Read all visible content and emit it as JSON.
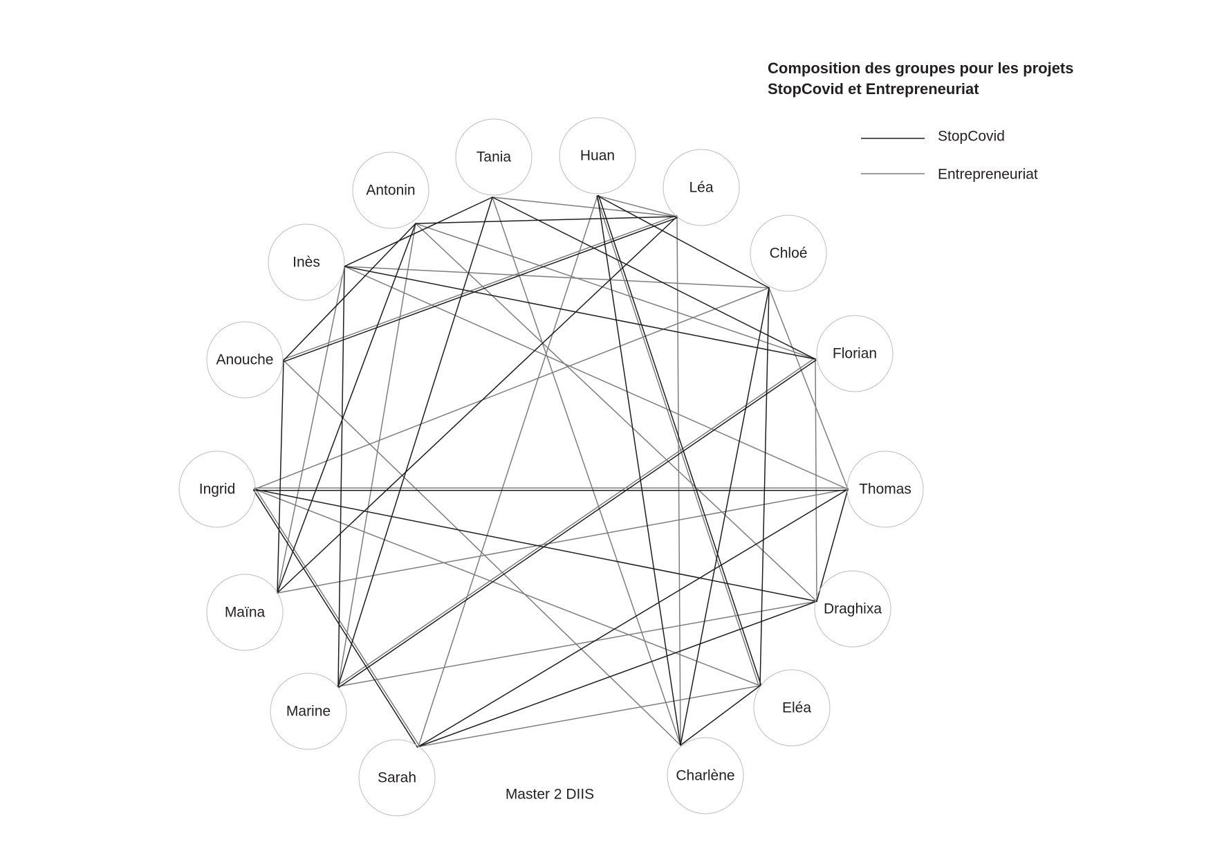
{
  "title": {
    "line1": "Composition des groupes pour les projets",
    "line2": "StopCovid et Entrepreneuriat"
  },
  "legend": [
    {
      "label": "StopCovid",
      "color": "#1c1c1c"
    },
    {
      "label": "Entrepreneuriat",
      "color": "#7d7d7d"
    }
  ],
  "graph": {
    "nodes": [
      "Tania",
      "Huan",
      "Léa",
      "Chloé",
      "Florian",
      "Thomas",
      "Draghixa",
      "Eléa",
      "Charlène",
      "Sarah",
      "Marine",
      "Maïna",
      "Ingrid",
      "Anouche",
      "Inès",
      "Antonin"
    ],
    "edges": [
      {
        "source": "Ingrid",
        "target": "Thomas",
        "project": "StopCovid"
      },
      {
        "source": "Ingrid",
        "target": "Draghixa",
        "project": "StopCovid"
      },
      {
        "source": "Ingrid",
        "target": "Sarah",
        "project": "StopCovid"
      },
      {
        "source": "Thomas",
        "target": "Draghixa",
        "project": "StopCovid"
      },
      {
        "source": "Thomas",
        "target": "Sarah",
        "project": "StopCovid"
      },
      {
        "source": "Draghixa",
        "target": "Sarah",
        "project": "StopCovid"
      },
      {
        "source": "Huan",
        "target": "Chloé",
        "project": "StopCovid"
      },
      {
        "source": "Huan",
        "target": "Charlène",
        "project": "StopCovid"
      },
      {
        "source": "Huan",
        "target": "Eléa",
        "project": "StopCovid"
      },
      {
        "source": "Chloé",
        "target": "Charlène",
        "project": "StopCovid"
      },
      {
        "source": "Chloé",
        "target": "Eléa",
        "project": "StopCovid"
      },
      {
        "source": "Charlène",
        "target": "Eléa",
        "project": "StopCovid"
      },
      {
        "source": "Tania",
        "target": "Florian",
        "project": "StopCovid"
      },
      {
        "source": "Tania",
        "target": "Inès",
        "project": "StopCovid"
      },
      {
        "source": "Tania",
        "target": "Marine",
        "project": "StopCovid"
      },
      {
        "source": "Florian",
        "target": "Inès",
        "project": "StopCovid"
      },
      {
        "source": "Florian",
        "target": "Marine",
        "project": "StopCovid"
      },
      {
        "source": "Inès",
        "target": "Marine",
        "project": "StopCovid"
      },
      {
        "source": "Léa",
        "target": "Antonin",
        "project": "StopCovid"
      },
      {
        "source": "Léa",
        "target": "Anouche",
        "project": "StopCovid"
      },
      {
        "source": "Léa",
        "target": "Maïna",
        "project": "StopCovid"
      },
      {
        "source": "Antonin",
        "target": "Anouche",
        "project": "StopCovid"
      },
      {
        "source": "Antonin",
        "target": "Maïna",
        "project": "StopCovid"
      },
      {
        "source": "Anouche",
        "target": "Maïna",
        "project": "StopCovid"
      },
      {
        "source": "Thomas",
        "target": "Chloé",
        "project": "Entrepreneuriat"
      },
      {
        "source": "Thomas",
        "target": "Maïna",
        "project": "Entrepreneuriat"
      },
      {
        "source": "Thomas",
        "target": "Inès",
        "project": "Entrepreneuriat"
      },
      {
        "source": "Chloé",
        "target": "Inès",
        "project": "Entrepreneuriat"
      },
      {
        "source": "Maïna",
        "target": "Inès",
        "project": "Entrepreneuriat"
      },
      {
        "source": "Ingrid",
        "target": "Chloé",
        "project": "Entrepreneuriat"
      },
      {
        "source": "Ingrid",
        "target": "Thomas",
        "project": "Entrepreneuriat"
      },
      {
        "source": "Ingrid",
        "target": "Sarah",
        "project": "Entrepreneuriat"
      },
      {
        "source": "Ingrid",
        "target": "Eléa",
        "project": "Entrepreneuriat"
      },
      {
        "source": "Huan",
        "target": "Sarah",
        "project": "Entrepreneuriat"
      },
      {
        "source": "Huan",
        "target": "Eléa",
        "project": "Entrepreneuriat"
      },
      {
        "source": "Sarah",
        "target": "Eléa",
        "project": "Entrepreneuriat"
      },
      {
        "source": "Florian",
        "target": "Draghixa",
        "project": "Entrepreneuriat"
      },
      {
        "source": "Florian",
        "target": "Marine",
        "project": "Entrepreneuriat"
      },
      {
        "source": "Draghixa",
        "target": "Marine",
        "project": "Entrepreneuriat"
      },
      {
        "source": "Antonin",
        "target": "Florian",
        "project": "Entrepreneuriat"
      },
      {
        "source": "Antonin",
        "target": "Draghixa",
        "project": "Entrepreneuriat"
      },
      {
        "source": "Antonin",
        "target": "Marine",
        "project": "Entrepreneuriat"
      },
      {
        "source": "Tania",
        "target": "Léa",
        "project": "Entrepreneuriat"
      },
      {
        "source": "Huan",
        "target": "Léa",
        "project": "Entrepreneuriat"
      },
      {
        "source": "Tania",
        "target": "Charlène",
        "project": "Entrepreneuriat"
      },
      {
        "source": "Léa",
        "target": "Charlène",
        "project": "Entrepreneuriat"
      },
      {
        "source": "Anouche",
        "target": "Charlène",
        "project": "Entrepreneuriat"
      },
      {
        "source": "Anouche",
        "target": "Léa",
        "project": "Entrepreneuriat"
      }
    ]
  },
  "footer": "Master 2 DIIS"
}
